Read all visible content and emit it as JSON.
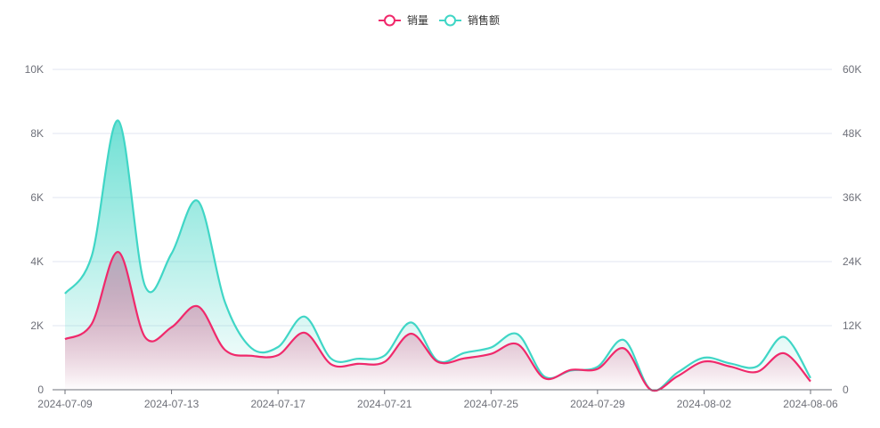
{
  "chart_data": {
    "type": "line",
    "x": [
      "2024-07-09",
      "2024-07-10",
      "2024-07-11",
      "2024-07-12",
      "2024-07-13",
      "2024-07-14",
      "2024-07-15",
      "2024-07-16",
      "2024-07-17",
      "2024-07-18",
      "2024-07-19",
      "2024-07-20",
      "2024-07-21",
      "2024-07-22",
      "2024-07-23",
      "2024-07-24",
      "2024-07-25",
      "2024-07-26",
      "2024-07-27",
      "2024-07-28",
      "2024-07-29",
      "2024-07-30",
      "2024-07-31",
      "2024-08-01",
      "2024-08-02",
      "2024-08-03",
      "2024-08-04",
      "2024-08-05",
      "2024-08-06"
    ],
    "xticks": [
      "2024-07-09",
      "2024-07-13",
      "2024-07-17",
      "2024-07-21",
      "2024-07-25",
      "2024-07-29",
      "2024-08-02",
      "2024-08-06"
    ],
    "series": [
      {
        "name": "销量",
        "color": "#f0296b",
        "axis": "left",
        "values": [
          1580,
          2050,
          4300,
          1650,
          1950,
          2600,
          1250,
          1060,
          1080,
          1780,
          790,
          810,
          870,
          1750,
          870,
          980,
          1120,
          1420,
          360,
          620,
          650,
          1290,
          0,
          420,
          880,
          720,
          560,
          1140,
          260
        ]
      },
      {
        "name": "销售额",
        "color": "#40d6c6",
        "axis": "right",
        "values": [
          18000,
          25000,
          50400,
          19500,
          25500,
          35300,
          16500,
          7800,
          8000,
          13700,
          5800,
          5800,
          6400,
          12600,
          5400,
          6900,
          7900,
          10400,
          2500,
          3600,
          4300,
          9300,
          0,
          3200,
          6000,
          4900,
          4400,
          9900,
          2200
        ]
      }
    ],
    "left_yaxis": {
      "ticks": [
        "0",
        "2K",
        "4K",
        "6K",
        "8K",
        "10K"
      ],
      "min": 0,
      "max": 10000
    },
    "right_yaxis": {
      "ticks": [
        "0",
        "12K",
        "24K",
        "36K",
        "48K",
        "60K"
      ],
      "min": 0,
      "max": 60000
    },
    "legend_position": "top-center",
    "grid": true
  }
}
